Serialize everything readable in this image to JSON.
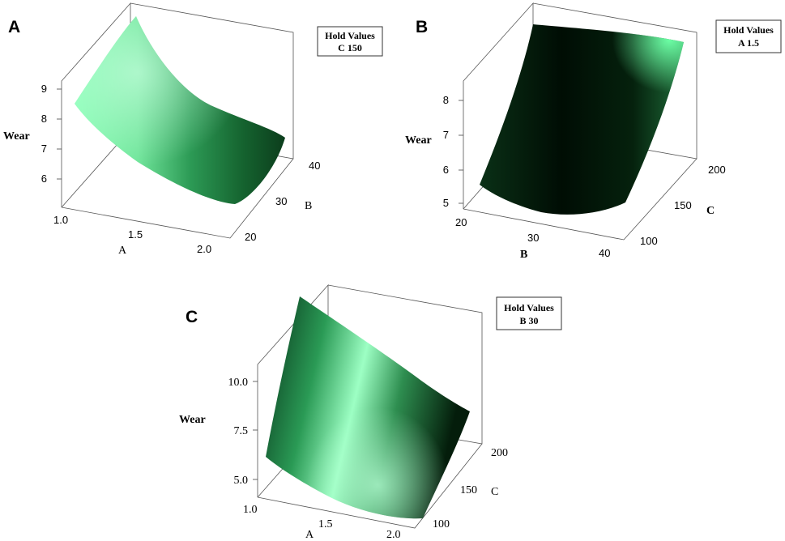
{
  "chart_data": [
    {
      "panel": "A",
      "type": "surface",
      "zlabel": "Wear",
      "xlabel": "A",
      "ylabel": "B",
      "x_ticks": [
        "1.0",
        "1.5",
        "2.0"
      ],
      "y_ticks": [
        "20",
        "30",
        "40"
      ],
      "z_ticks": [
        "6",
        "7",
        "8",
        "9"
      ],
      "hold_title": "Hold Values",
      "hold_value": "C  150",
      "surface": {
        "x": [
          1.0,
          1.5,
          2.0
        ],
        "y": [
          20,
          30,
          40
        ],
        "z": [
          [
            8.6,
            6.9,
            5.6
          ],
          [
            9.0,
            7.3,
            6.1
          ],
          [
            9.8,
            8.1,
            7.0
          ]
        ]
      }
    },
    {
      "panel": "B",
      "type": "surface",
      "zlabel": "Wear",
      "xlabel": "B",
      "ylabel": "C",
      "x_ticks": [
        "20",
        "30",
        "40"
      ],
      "y_ticks": [
        "100",
        "150",
        "200"
      ],
      "z_ticks": [
        "5",
        "6",
        "7",
        "8"
      ],
      "hold_title": "Hold Values",
      "hold_value": "A  1.5",
      "surface": {
        "x": [
          20,
          30,
          40
        ],
        "y": [
          100,
          150,
          200
        ],
        "z": [
          [
            5.5,
            5.1,
            5.4
          ],
          [
            6.8,
            6.3,
            6.9
          ],
          [
            8.7,
            8.3,
            8.9
          ]
        ]
      }
    },
    {
      "panel": "C",
      "type": "surface",
      "zlabel": "Wear",
      "xlabel": "A",
      "ylabel": "C",
      "x_ticks": [
        "1.0",
        "1.5",
        "2.0"
      ],
      "y_ticks": [
        "100",
        "150",
        "200"
      ],
      "z_ticks": [
        "5.0",
        "7.5",
        "10.0"
      ],
      "hold_title": "Hold Values",
      "hold_value": "B  30",
      "surface": {
        "x": [
          1.0,
          1.5,
          2.0
        ],
        "y": [
          100,
          150,
          200
        ],
        "z": [
          [
            6.5,
            4.4,
            4.0
          ],
          [
            9.5,
            7.2,
            6.1
          ],
          [
            12.5,
            10.2,
            8.5
          ]
        ]
      }
    }
  ],
  "colors": {
    "surface_light": "#7effb2",
    "surface_mid": "#2fae62",
    "surface_dark": "#032010",
    "surface_black": "#000a03"
  }
}
